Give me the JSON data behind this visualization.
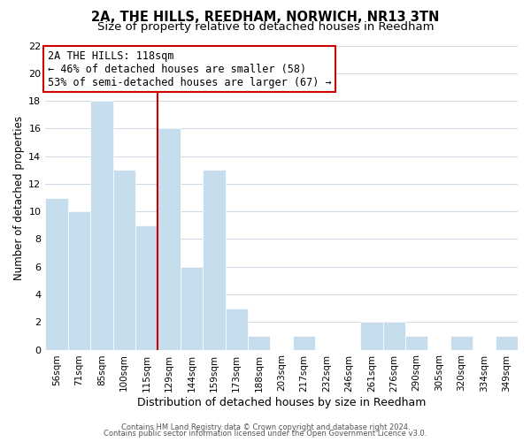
{
  "title": "2A, THE HILLS, REEDHAM, NORWICH, NR13 3TN",
  "subtitle": "Size of property relative to detached houses in Reedham",
  "xlabel": "Distribution of detached houses by size in Reedham",
  "ylabel": "Number of detached properties",
  "footer1": "Contains HM Land Registry data © Crown copyright and database right 2024.",
  "footer2": "Contains public sector information licensed under the Open Government Licence v3.0.",
  "bin_labels": [
    "56sqm",
    "71sqm",
    "85sqm",
    "100sqm",
    "115sqm",
    "129sqm",
    "144sqm",
    "159sqm",
    "173sqm",
    "188sqm",
    "203sqm",
    "217sqm",
    "232sqm",
    "246sqm",
    "261sqm",
    "276sqm",
    "290sqm",
    "305sqm",
    "320sqm",
    "334sqm",
    "349sqm"
  ],
  "bar_heights": [
    11,
    10,
    18,
    13,
    9,
    16,
    6,
    13,
    3,
    1,
    0,
    1,
    0,
    0,
    2,
    2,
    1,
    0,
    1,
    0,
    1
  ],
  "bar_color": "#c5dded",
  "bar_edge_color": "#ffffff",
  "property_line_index": 4.5,
  "property_line_color": "#cc0000",
  "annotation_line1": "2A THE HILLS: 118sqm",
  "annotation_line2": "← 46% of detached houses are smaller (58)",
  "annotation_line3": "53% of semi-detached houses are larger (67) →",
  "annotation_box_color": "#ffffff",
  "annotation_box_edge_color": "#cc0000",
  "ylim": [
    0,
    22
  ],
  "yticks": [
    0,
    2,
    4,
    6,
    8,
    10,
    12,
    14,
    16,
    18,
    20,
    22
  ],
  "background_color": "#ffffff",
  "grid_color": "#ccd9e6",
  "title_fontsize": 10.5,
  "subtitle_fontsize": 9.5,
  "ylabel_fontsize": 8.5,
  "xlabel_fontsize": 9,
  "tick_fontsize": 8,
  "xtick_fontsize": 7.5,
  "footer_fontsize": 6,
  "annotation_fontsize": 8.5
}
